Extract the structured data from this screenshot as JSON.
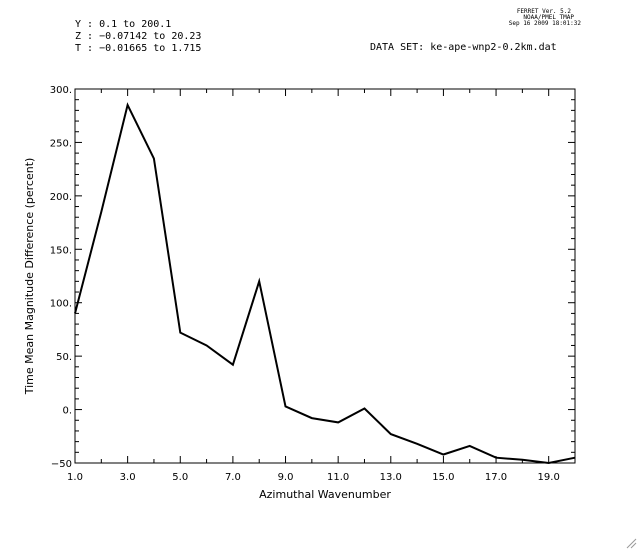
{
  "header": {
    "ferret_version": "FERRET Ver. 5.2",
    "ferret_org": "NOAA/PMEL TMAP",
    "ferret_date": "Sep 16 2009 18:01:32",
    "y_range": "Y : 0.1 to 200.1",
    "z_range": "Z : −0.07142 to 20.23",
    "t_range": "T : −0.01665 to 1.715",
    "dataset": "DATA SET: ke-ape-wnp2-0.2km.dat"
  },
  "chart_data": {
    "type": "line",
    "xlabel": "Azimuthal Wavenumber",
    "ylabel": "Time Mean Magnitude Difference (percent)",
    "xlim": [
      1,
      20
    ],
    "ylim": [
      -50,
      300
    ],
    "x_ticks_major": [
      1,
      3,
      5,
      7,
      9,
      11,
      13,
      15,
      17,
      19
    ],
    "x_tick_labels": [
      "1.0",
      "3.0",
      "5.0",
      "7.0",
      "9.0",
      "11.0",
      "13.0",
      "15.0",
      "17.0",
      "19.0"
    ],
    "y_ticks_major": [
      -50,
      0,
      50,
      100,
      150,
      200,
      250,
      300
    ],
    "y_tick_labels": [
      "−50",
      "0.",
      "50.",
      "100.",
      "150.",
      "200.",
      "250.",
      "300."
    ],
    "grid": false,
    "series": [
      {
        "x": [
          1,
          2,
          3,
          4,
          5,
          6,
          7,
          8,
          9,
          10,
          11,
          12,
          13,
          14,
          15,
          16,
          17,
          18,
          19,
          20
        ],
        "values": [
          90,
          185,
          285,
          235,
          72,
          60,
          42,
          120,
          3,
          -8,
          -12,
          1,
          -23,
          -32,
          -42,
          -34,
          -45,
          -47,
          -50,
          -45
        ],
        "color": "#000000"
      }
    ]
  }
}
